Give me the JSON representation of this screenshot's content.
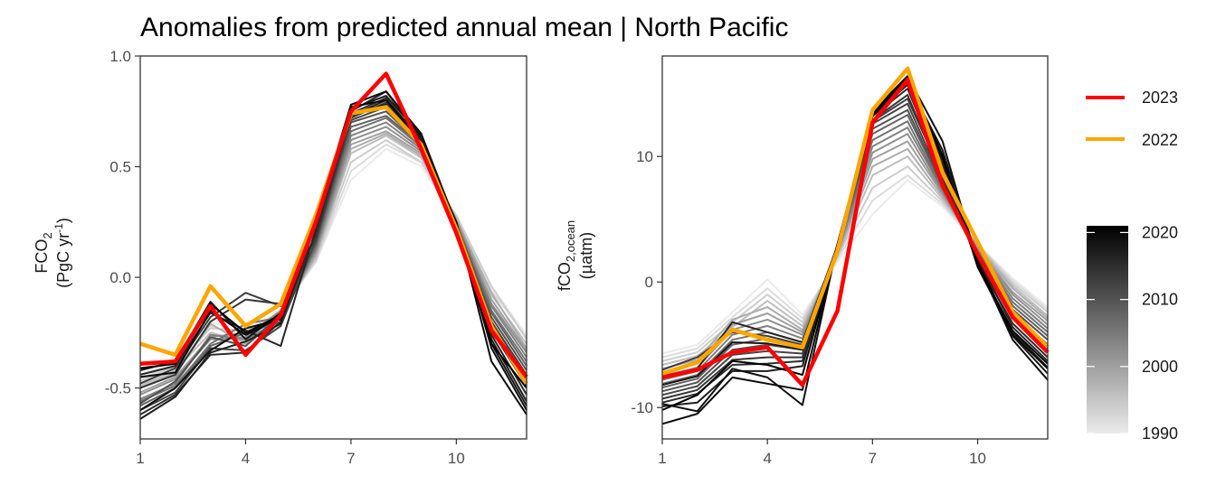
{
  "title": "Anomalies from predicted annual mean | North Pacific",
  "colors": {
    "highlight_2023": "#ff0000",
    "highlight_2022": "#ffa500",
    "axis": "#333333",
    "background": "#ffffff"
  },
  "legend": {
    "items": [
      {
        "label": "2023",
        "color": "#ff0000"
      },
      {
        "label": "2022",
        "color": "#ffa500"
      }
    ],
    "colorbar": {
      "ticks": [
        "2020",
        "2010",
        "2000",
        "1990"
      ],
      "range": [
        1990,
        2021
      ],
      "tick_values": [
        2020,
        2010,
        2000,
        1990
      ],
      "from_color": "#ebebeb",
      "to_color": "#000000"
    }
  },
  "chart_data": [
    {
      "type": "line",
      "ylabel_main": "FCO",
      "ylabel_sub": "2",
      "ylabel_unit_pre": "(PgC yr",
      "ylabel_unit_sup": "-1",
      "ylabel_unit_post": ")",
      "xlim": [
        1,
        12
      ],
      "ylim": [
        -0.73,
        1.0
      ],
      "xticks": [
        1,
        4,
        7,
        10
      ],
      "yticks": [
        1.0,
        0.5,
        0.0,
        -0.5
      ],
      "ytick_labels": [
        "1.0",
        "0.5",
        "0.0",
        "-0.5"
      ],
      "highlight": [
        {
          "name": "2022",
          "color": "#ffa500",
          "values": [
            -0.3,
            -0.35,
            -0.04,
            -0.22,
            -0.12,
            0.28,
            0.74,
            0.77,
            0.6,
            0.22,
            -0.22,
            -0.48
          ]
        },
        {
          "name": "2023",
          "color": "#ff0000",
          "values": [
            -0.39,
            -0.38,
            -0.13,
            -0.35,
            -0.17,
            0.25,
            0.75,
            0.92,
            0.58,
            0.2,
            -0.24,
            -0.45
          ]
        }
      ],
      "background_series": [
        {
          "year": 1990,
          "values": [
            -0.44,
            -0.38,
            -0.2,
            -0.26,
            -0.14,
            0.07,
            0.44,
            0.58,
            0.5,
            0.27,
            -0.04,
            -0.26
          ]
        },
        {
          "year": 1992,
          "values": [
            -0.46,
            -0.39,
            -0.22,
            -0.27,
            -0.15,
            0.07,
            0.48,
            0.6,
            0.52,
            0.27,
            -0.06,
            -0.27
          ]
        },
        {
          "year": 1994,
          "values": [
            -0.47,
            -0.4,
            -0.23,
            -0.24,
            -0.16,
            0.08,
            0.52,
            0.62,
            0.52,
            0.28,
            -0.04,
            -0.28
          ]
        },
        {
          "year": 1996,
          "values": [
            -0.49,
            -0.42,
            -0.25,
            -0.29,
            -0.16,
            0.09,
            0.56,
            0.64,
            0.54,
            0.27,
            -0.08,
            -0.3
          ]
        },
        {
          "year": 1998,
          "values": [
            -0.5,
            -0.43,
            -0.21,
            -0.3,
            -0.17,
            0.1,
            0.58,
            0.65,
            0.55,
            0.26,
            -0.07,
            -0.32
          ]
        },
        {
          "year": 2000,
          "values": [
            -0.52,
            -0.45,
            -0.27,
            -0.25,
            -0.18,
            0.11,
            0.6,
            0.66,
            0.56,
            0.26,
            -0.1,
            -0.33
          ]
        },
        {
          "year": 2002,
          "values": [
            -0.53,
            -0.46,
            -0.28,
            -0.27,
            -0.15,
            0.12,
            0.62,
            0.68,
            0.57,
            0.25,
            -0.12,
            -0.34
          ]
        },
        {
          "year": 2004,
          "values": [
            -0.55,
            -0.48,
            -0.26,
            -0.28,
            -0.2,
            0.13,
            0.64,
            0.7,
            0.58,
            0.25,
            -0.13,
            -0.36
          ]
        },
        {
          "year": 2006,
          "values": [
            -0.56,
            -0.49,
            -0.3,
            -0.21,
            -0.18,
            0.14,
            0.66,
            0.72,
            0.59,
            0.24,
            -0.15,
            -0.38
          ]
        },
        {
          "year": 2008,
          "values": [
            -0.58,
            -0.5,
            -0.31,
            -0.25,
            -0.2,
            0.15,
            0.68,
            0.73,
            0.6,
            0.24,
            -0.16,
            -0.4
          ]
        },
        {
          "year": 2010,
          "values": [
            -0.57,
            -0.47,
            -0.27,
            -0.31,
            -0.17,
            0.16,
            0.7,
            0.75,
            0.6,
            0.23,
            -0.18,
            -0.42
          ]
        },
        {
          "year": 2012,
          "values": [
            -0.6,
            -0.52,
            -0.32,
            -0.33,
            -0.22,
            0.17,
            0.71,
            0.77,
            0.61,
            0.22,
            -0.2,
            -0.44
          ]
        },
        {
          "year": 2013,
          "values": [
            -0.48,
            -0.41,
            -0.18,
            -0.07,
            -0.13,
            0.18,
            0.72,
            0.79,
            0.61,
            0.22,
            -0.21,
            -0.46
          ]
        },
        {
          "year": 2014,
          "values": [
            -0.5,
            -0.44,
            -0.2,
            -0.1,
            -0.12,
            0.19,
            0.73,
            0.78,
            0.62,
            0.21,
            -0.22,
            -0.47
          ]
        },
        {
          "year": 2015,
          "values": [
            -0.62,
            -0.53,
            -0.35,
            -0.34,
            -0.2,
            0.2,
            0.74,
            0.81,
            0.62,
            0.21,
            -0.24,
            -0.49
          ]
        },
        {
          "year": 2016,
          "values": [
            -0.44,
            -0.4,
            -0.16,
            -0.24,
            -0.31,
            0.22,
            0.75,
            0.84,
            0.63,
            0.22,
            -0.26,
            -0.53
          ]
        },
        {
          "year": 2017,
          "values": [
            -0.64,
            -0.54,
            -0.34,
            -0.29,
            -0.21,
            0.24,
            0.73,
            0.8,
            0.63,
            0.2,
            -0.28,
            -0.56
          ]
        },
        {
          "year": 2018,
          "values": [
            -0.42,
            -0.38,
            -0.11,
            -0.28,
            -0.16,
            0.25,
            0.76,
            0.82,
            0.64,
            0.21,
            -0.3,
            -0.58
          ]
        },
        {
          "year": 2019,
          "values": [
            -0.6,
            -0.5,
            -0.33,
            -0.23,
            -0.19,
            0.26,
            0.78,
            0.84,
            0.65,
            0.24,
            -0.32,
            -0.6
          ]
        },
        {
          "year": 2020,
          "values": [
            -0.45,
            -0.43,
            -0.15,
            -0.26,
            -0.18,
            0.27,
            0.77,
            0.8,
            0.61,
            0.25,
            -0.38,
            -0.62
          ]
        },
        {
          "year": 2021,
          "values": [
            -0.41,
            -0.39,
            -0.12,
            -0.25,
            -0.17,
            0.26,
            0.74,
            0.78,
            0.6,
            0.24,
            -0.3,
            -0.5
          ]
        }
      ]
    },
    {
      "type": "line",
      "ylabel_main": "fCO",
      "ylabel_sub": "2,ocean",
      "ylabel_unit": "(µatm)",
      "xlim": [
        1,
        12
      ],
      "ylim": [
        -12.5,
        18
      ],
      "xticks": [
        1,
        4,
        7,
        10
      ],
      "yticks": [
        10,
        0,
        -10
      ],
      "ytick_labels": [
        "10",
        "0",
        "-10"
      ],
      "highlight": [
        {
          "name": "2022",
          "color": "#ffa500",
          "values": [
            -7.3,
            -6.4,
            -3.8,
            -4.6,
            -5.2,
            2.5,
            13.7,
            17.0,
            8.7,
            3.2,
            -2.4,
            -5.2
          ]
        },
        {
          "name": "2023",
          "color": "#ff0000",
          "values": [
            -7.6,
            -7.0,
            -5.6,
            -5.2,
            -8.2,
            -2.3,
            12.7,
            16.1,
            7.7,
            2.2,
            -2.8,
            -5.6
          ]
        }
      ],
      "background_series": [
        {
          "year": 1990,
          "values": [
            -5.7,
            -5.0,
            -2.4,
            0.2,
            -2.6,
            1.6,
            5.4,
            8.1,
            6.0,
            3.0,
            0.3,
            -2.0
          ]
        },
        {
          "year": 1992,
          "values": [
            -6.0,
            -5.3,
            -2.8,
            -0.5,
            -2.9,
            1.8,
            6.5,
            8.5,
            6.2,
            3.0,
            0.1,
            -2.2
          ]
        },
        {
          "year": 1994,
          "values": [
            -6.3,
            -5.6,
            -3.2,
            -1.0,
            -3.2,
            2.0,
            7.5,
            9.2,
            6.4,
            3.0,
            -0.1,
            -2.4
          ]
        },
        {
          "year": 1996,
          "values": [
            -6.6,
            -5.9,
            -3.6,
            -1.5,
            -3.5,
            2.1,
            8.5,
            10.0,
            6.6,
            2.9,
            -0.3,
            -2.7
          ]
        },
        {
          "year": 1998,
          "values": [
            -6.9,
            -6.2,
            -3.0,
            -2.0,
            -3.8,
            2.2,
            9.2,
            10.6,
            6.8,
            2.8,
            -0.5,
            -2.9
          ]
        },
        {
          "year": 2000,
          "values": [
            -7.2,
            -6.5,
            -3.4,
            -2.5,
            -4.0,
            2.3,
            9.8,
            11.2,
            7.0,
            2.7,
            -0.8,
            -3.1
          ]
        },
        {
          "year": 2002,
          "values": [
            -7.5,
            -6.8,
            -3.8,
            -3.0,
            -4.2,
            2.4,
            10.3,
            11.8,
            7.1,
            2.6,
            -1.0,
            -3.4
          ]
        },
        {
          "year": 2004,
          "values": [
            -7.8,
            -7.1,
            -4.2,
            -3.5,
            -4.5,
            2.5,
            10.8,
            12.3,
            7.3,
            2.5,
            -1.3,
            -3.7
          ]
        },
        {
          "year": 2006,
          "values": [
            -8.1,
            -7.4,
            -4.6,
            -4.0,
            -4.8,
            2.6,
            11.3,
            12.8,
            7.4,
            2.4,
            -1.6,
            -4.0
          ]
        },
        {
          "year": 2008,
          "values": [
            -8.4,
            -7.7,
            -5.0,
            -4.5,
            -5.1,
            2.7,
            11.8,
            13.3,
            7.6,
            2.3,
            -1.9,
            -4.3
          ]
        },
        {
          "year": 2010,
          "values": [
            -8.7,
            -8.0,
            -5.4,
            -5.0,
            -5.4,
            2.7,
            12.2,
            13.7,
            7.7,
            2.1,
            -2.2,
            -4.6
          ]
        },
        {
          "year": 2012,
          "values": [
            -9.0,
            -8.3,
            -5.8,
            -5.5,
            -5.7,
            2.8,
            12.6,
            14.2,
            7.9,
            2.0,
            -2.5,
            -5.0
          ]
        },
        {
          "year": 2013,
          "values": [
            -7.0,
            -6.0,
            -4.0,
            -4.3,
            -5.0,
            2.8,
            12.8,
            14.6,
            8.5,
            2.2,
            -2.7,
            -5.3
          ]
        },
        {
          "year": 2014,
          "values": [
            -9.3,
            -8.6,
            -6.2,
            -6.0,
            -6.0,
            2.8,
            12.9,
            14.9,
            8.2,
            1.8,
            -2.9,
            -5.6
          ]
        },
        {
          "year": 2015,
          "values": [
            -9.6,
            -8.9,
            -6.6,
            -6.5,
            -6.3,
            2.9,
            13.2,
            15.4,
            8.6,
            1.6,
            -3.3,
            -6.0
          ]
        },
        {
          "year": 2016,
          "values": [
            -7.5,
            -6.9,
            -3.2,
            -4.0,
            -4.8,
            2.9,
            13.3,
            15.7,
            9.2,
            1.9,
            -3.6,
            -6.3
          ]
        },
        {
          "year": 2017,
          "values": [
            -9.9,
            -9.6,
            -7.1,
            -7.1,
            -6.7,
            3.0,
            13.5,
            16.0,
            9.6,
            1.3,
            -4.0,
            -6.8
          ]
        },
        {
          "year": 2018,
          "values": [
            -8.2,
            -7.5,
            -4.8,
            -4.9,
            -5.4,
            2.9,
            13.4,
            15.9,
            10.5,
            1.8,
            -4.3,
            -7.3
          ]
        },
        {
          "year": 2019,
          "values": [
            -9.7,
            -10.3,
            -6.9,
            -7.6,
            -9.8,
            3.0,
            13.6,
            16.4,
            11.2,
            1.5,
            -4.6,
            -7.8
          ]
        },
        {
          "year": 2020,
          "values": [
            -11.3,
            -10.5,
            -7.6,
            -8.1,
            -8.6,
            3.0,
            13.2,
            16.2,
            10.1,
            1.2,
            -4.2,
            -6.9
          ]
        },
        {
          "year": 2021,
          "values": [
            -10.2,
            -9.0,
            -6.3,
            -6.6,
            -7.4,
            2.9,
            13.4,
            16.3,
            9.9,
            1.4,
            -3.9,
            -6.5
          ]
        }
      ]
    }
  ]
}
